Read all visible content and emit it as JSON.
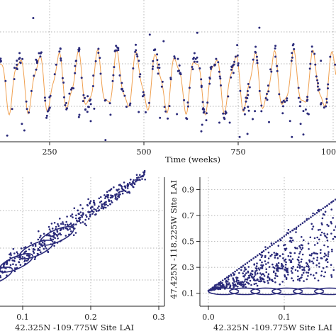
{
  "colors": {
    "points": "#2a2a7a",
    "fit": "#f0a050",
    "grid": "#9a9a9a",
    "axis": "#222222"
  },
  "chart_data": [
    {
      "id": "timeseries",
      "type": "scatter",
      "xlabel": "Time (weeks)",
      "xlim": [
        0,
        1000
      ],
      "ylim": [
        0,
        1
      ],
      "x_ticks": [
        250,
        500,
        750
      ],
      "x_tick_labels": [
        "250",
        "500",
        "750"
      ],
      "x_tick_label_right_edge": "100",
      "grid": true,
      "series": [
        {
          "kind": "points",
          "period_weeks": 52,
          "count": 380,
          "base": 0.42,
          "amplitude": 0.2,
          "noise": 0.07
        },
        {
          "kind": "fit-line",
          "period_weeks": 52,
          "base": 0.42,
          "amplitude": 0.18
        }
      ]
    },
    {
      "id": "scatter-left",
      "type": "scatter",
      "xlabel": "42.325N -109.775W Site LAI",
      "xlim": [
        0,
        0.3
      ],
      "ylim": [
        0,
        0.3
      ],
      "x_ticks": [
        0.1,
        0.2,
        0.3
      ],
      "x_tick_labels": [
        "0.1",
        "0.2",
        "0.3"
      ],
      "grid": true,
      "series": [
        {
          "kind": "diagonal-band",
          "x_range": [
            0.0,
            0.28
          ],
          "count": 520
        }
      ]
    },
    {
      "id": "scatter-right",
      "type": "scatter",
      "xlabel": "42.325N -109.775W Site LAI",
      "ylabel": "47.425N -118.225W Site LAI",
      "xlim": [
        -0.03,
        0.2
      ],
      "ylim": [
        0,
        1.0
      ],
      "x_ticks": [
        0.0,
        0.1
      ],
      "x_tick_labels": [
        "0.0",
        "0.1"
      ],
      "y_ticks": [
        0.1,
        0.3,
        0.5,
        0.7,
        0.9
      ],
      "y_tick_labels": [
        "0.1",
        "0.3",
        "0.5",
        "0.7",
        "0.9"
      ],
      "grid": true,
      "series": [
        {
          "kind": "fan",
          "x_range": [
            0.0,
            0.2
          ],
          "count": 600
        }
      ]
    }
  ]
}
